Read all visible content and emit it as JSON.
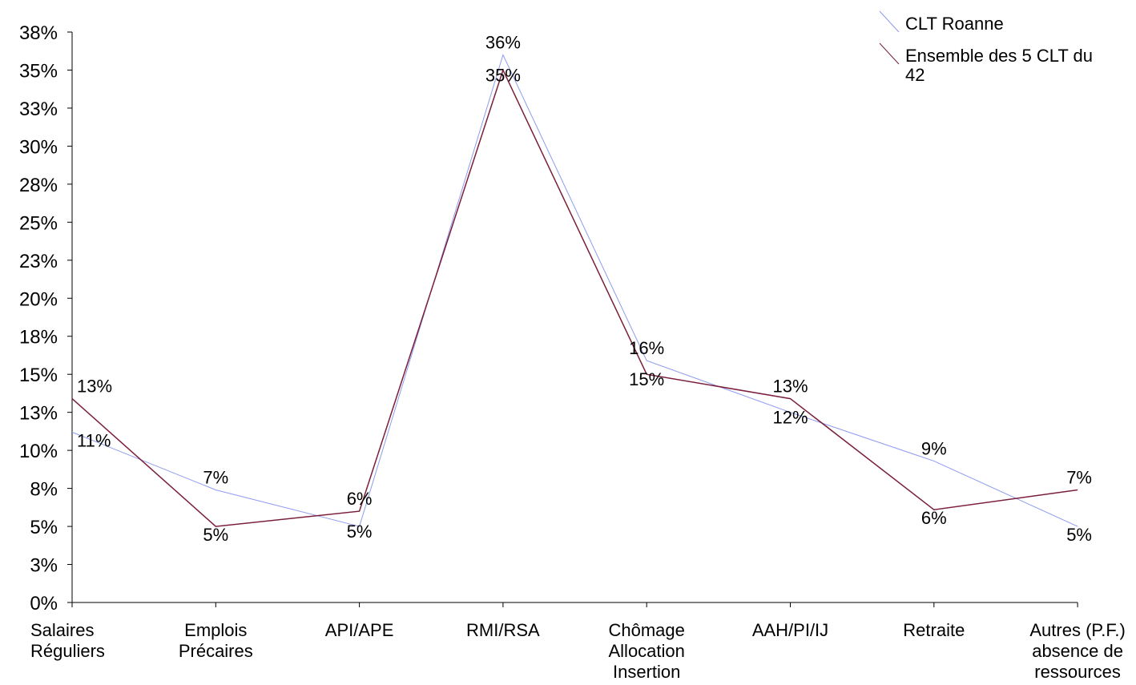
{
  "chart_data": {
    "type": "line",
    "categories": [
      [
        "Salaires",
        "Réguliers"
      ],
      [
        "Emplois",
        "Précaires"
      ],
      [
        "API/APE"
      ],
      [
        "RMI/RSA"
      ],
      [
        "Chômage",
        "Allocation",
        "Insertion"
      ],
      [
        "AAH/PI/IJ"
      ],
      [
        "Retraite"
      ],
      [
        "Autres (P.F.)",
        "absence de",
        "ressources"
      ]
    ],
    "series": [
      {
        "name": "CLT Roanne",
        "color": "#8f9bf0",
        "values": [
          11.2,
          7.4,
          5.0,
          36.0,
          15.9,
          12.5,
          9.3,
          5.0
        ],
        "labels": [
          "11%",
          "7%",
          "5%",
          "36%",
          "16%",
          "12%",
          "9%",
          "5%"
        ]
      },
      {
        "name": "Ensemble des 5 CLT du 42",
        "legend_lines": [
          "Ensemble des 5 CLT du",
          "42"
        ],
        "color": "#7a1f3a",
        "values": [
          13.4,
          5.0,
          6.0,
          35.0,
          15.0,
          13.4,
          6.1,
          7.4
        ],
        "labels": [
          "13%",
          "5%",
          "6%",
          "35%",
          "15%",
          "13%",
          "6%",
          "7%"
        ]
      }
    ],
    "y_ticks": [
      "0%",
      "3%",
      "5%",
      "8%",
      "10%",
      "13%",
      "15%",
      "18%",
      "20%",
      "23%",
      "25%",
      "28%",
      "30%",
      "33%",
      "35%",
      "38%"
    ],
    "ylim": [
      0,
      37.5
    ],
    "grid": false,
    "legend_position": "top-right",
    "title": "",
    "xlabel": "",
    "ylabel": ""
  }
}
